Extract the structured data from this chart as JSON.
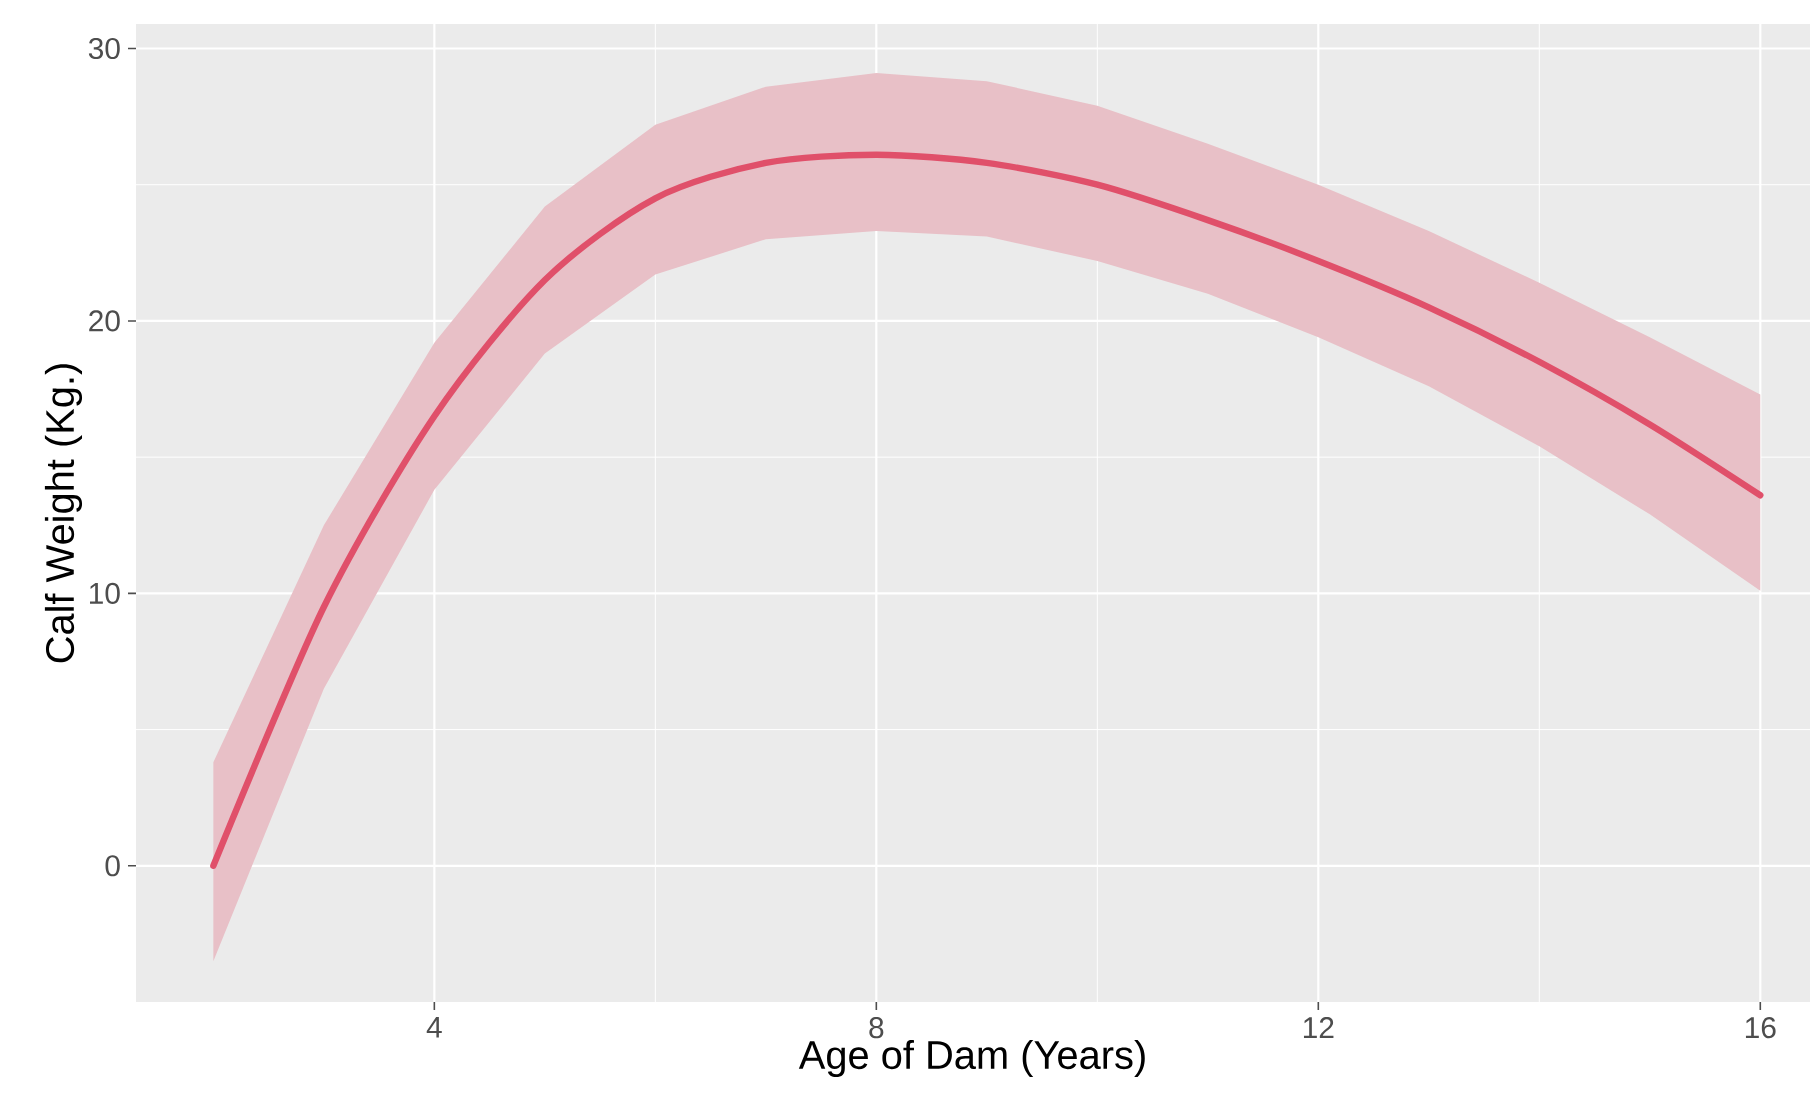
{
  "chart_data": {
    "type": "line",
    "xlabel": "Age of Dam (Years)",
    "ylabel": "Calf Weight (Kg.)",
    "xlim": [
      1.3,
      16.45
    ],
    "ylim": [
      -5,
      30.9
    ],
    "xticks": [
      4,
      8,
      12,
      16
    ],
    "yticks": [
      0,
      10,
      20,
      30
    ],
    "grid": true,
    "marker": "none",
    "line_style": "solid",
    "series": [
      {
        "color": "#e0506a",
        "x": [
          2,
          3,
          4,
          5,
          6,
          7,
          8,
          9,
          10,
          11,
          12,
          13,
          14,
          15,
          16
        ],
        "values": [
          0,
          9.5,
          16.5,
          21.5,
          24.5,
          25.8,
          26.1,
          25.8,
          25,
          23.7,
          22.2,
          20.5,
          18.5,
          16.2,
          13.6
        ],
        "lower": [
          -3.5,
          6.5,
          13.8,
          18.8,
          21.7,
          23,
          23.3,
          23.1,
          22.2,
          21,
          19.4,
          17.6,
          15.4,
          12.9,
          10.1
        ],
        "upper": [
          3.8,
          12.5,
          19.2,
          24.2,
          27.2,
          28.6,
          29.1,
          28.8,
          27.9,
          26.5,
          25,
          23.3,
          21.4,
          19.4,
          17.3
        ]
      }
    ]
  }
}
